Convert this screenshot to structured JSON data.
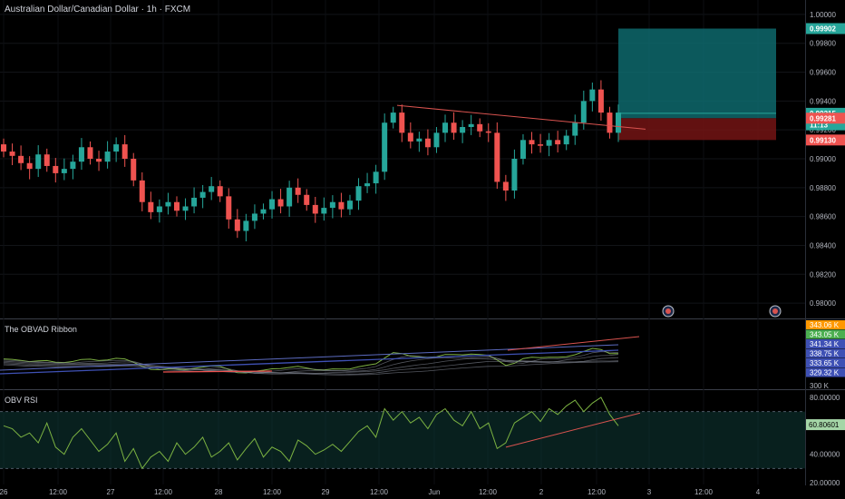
{
  "header": {
    "symbol_title": "Australian Dollar/Canadian Dollar · 1h · FXCM"
  },
  "panels": {
    "obv_title": "The OBVAD Ribbon",
    "rsi_title": "OBV RSI"
  },
  "colors": {
    "up": "#26a69a",
    "down": "#ef5350",
    "background": "#000000",
    "target_zone": "#0f6f73",
    "stop_zone": "#7a1515",
    "trendline": "#d9534f",
    "obv_green": "#8bc34a",
    "obv_red": "#ef5350",
    "obv_blue": "#3f51b5",
    "rsi_line": "#7cb342"
  },
  "chart_data": [
    {
      "type": "candlestick",
      "title": "Australian Dollar/Canadian Dollar · 1h · FXCM",
      "y_ticks": [
        "1.00000",
        "0.99800",
        "0.99600",
        "0.99400",
        "0.99200",
        "0.99000",
        "0.98800",
        "0.98600",
        "0.98400",
        "0.98200",
        "0.98000"
      ],
      "ylim": [
        0.979,
        1.001
      ],
      "x_ticks": [
        "26",
        "12:00",
        "27",
        "12:00",
        "28",
        "12:00",
        "29",
        "12:00",
        "Jun",
        "12:00",
        "2",
        "12:00",
        "3",
        "12:00",
        "4"
      ],
      "price_labels": [
        {
          "text": "0.99902",
          "value": 0.99902,
          "color": "#26a69a"
        },
        {
          "text": "0.99315",
          "value": 0.99315,
          "color": "#26a69a"
        },
        {
          "text": "11:13",
          "value": 0.99235,
          "color": "#26a69a"
        },
        {
          "text": "0.99281",
          "value": 0.99281,
          "color": "#ef5350"
        },
        {
          "text": "0.99130",
          "value": 0.9913,
          "color": "#ef5350"
        }
      ],
      "position": {
        "target": 0.99902,
        "entry": 0.99281,
        "stop": 0.9913
      },
      "trendline": {
        "from": 0.9937,
        "to": 0.99205
      },
      "close_path": [
        0.9905,
        0.9902,
        0.9897,
        0.9893,
        0.9903,
        0.9895,
        0.989,
        0.9893,
        0.9898,
        0.9908,
        0.99,
        0.9898,
        0.9905,
        0.991,
        0.99,
        0.9885,
        0.987,
        0.9863,
        0.9867,
        0.987,
        0.9864,
        0.9867,
        0.9873,
        0.9877,
        0.9881,
        0.9874,
        0.9858,
        0.985,
        0.9857,
        0.9862,
        0.9865,
        0.9872,
        0.9867,
        0.988,
        0.9875,
        0.9868,
        0.9862,
        0.9866,
        0.987,
        0.9865,
        0.9871,
        0.9881,
        0.9883,
        0.9891,
        0.9925,
        0.9932,
        0.9918,
        0.9912,
        0.9914,
        0.9908,
        0.9918,
        0.9925,
        0.9918,
        0.9922,
        0.9924,
        0.9919,
        0.9918,
        0.9884,
        0.9878,
        0.99,
        0.9913,
        0.991,
        0.9909,
        0.9913,
        0.991,
        0.9916,
        0.9925,
        0.994,
        0.9948,
        0.9932,
        0.9918,
        0.9932
      ]
    },
    {
      "type": "line",
      "title": "The OBVAD Ribbon",
      "values_labels": [
        {
          "text": "343.06 K",
          "color": "#ff9800"
        },
        {
          "text": "343.05 K",
          "color": "#4caf50"
        },
        {
          "text": "341.34 K",
          "color": "#3f51b5"
        },
        {
          "text": "338.75 K",
          "color": "#3f51b5"
        },
        {
          "text": "333.65 K",
          "color": "#3f51b5"
        },
        {
          "text": "329.32 K",
          "color": "#3f51b5"
        }
      ],
      "y_ticks": [
        "300 K"
      ]
    },
    {
      "type": "line",
      "title": "OBV RSI",
      "y_ticks": [
        "80.00000",
        "40.00000",
        "20.00000"
      ],
      "ylim": [
        20,
        80
      ],
      "current_value": "60.80601",
      "series": [
        {
          "values": [
            60,
            58,
            52,
            55,
            48,
            62,
            45,
            40,
            52,
            58,
            50,
            42,
            47,
            55,
            35,
            44,
            30,
            38,
            42,
            35,
            48,
            40,
            45,
            52,
            38,
            42,
            48,
            36,
            44,
            51,
            38,
            45,
            42,
            35,
            50,
            46,
            40,
            43,
            47,
            42,
            49,
            56,
            60,
            52,
            72,
            64,
            70,
            62,
            66,
            58,
            68,
            72,
            64,
            60,
            70,
            58,
            62,
            44,
            48,
            62,
            66,
            70,
            63,
            72,
            68,
            74,
            78,
            70,
            76,
            80,
            68,
            60
          ]
        }
      ],
      "bands": [
        30,
        70
      ]
    }
  ]
}
